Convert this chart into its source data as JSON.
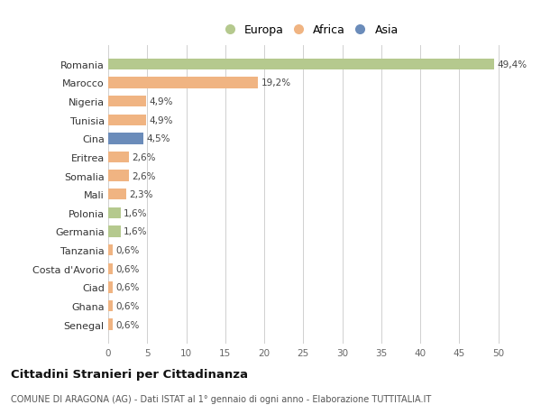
{
  "categories": [
    "Romania",
    "Marocco",
    "Nigeria",
    "Tunisia",
    "Cina",
    "Eritrea",
    "Somalia",
    "Mali",
    "Polonia",
    "Germania",
    "Tanzania",
    "Costa d'Avorio",
    "Ciad",
    "Ghana",
    "Senegal"
  ],
  "values": [
    49.4,
    19.2,
    4.9,
    4.9,
    4.5,
    2.6,
    2.6,
    2.3,
    1.6,
    1.6,
    0.6,
    0.6,
    0.6,
    0.6,
    0.6
  ],
  "labels": [
    "49,4%",
    "19,2%",
    "4,9%",
    "4,9%",
    "4,5%",
    "2,6%",
    "2,6%",
    "2,3%",
    "1,6%",
    "1,6%",
    "0,6%",
    "0,6%",
    "0,6%",
    "0,6%",
    "0,6%"
  ],
  "bar_colors": [
    "#b5c98e",
    "#f0b482",
    "#f0b482",
    "#f0b482",
    "#6b8cba",
    "#f0b482",
    "#f0b482",
    "#f0b482",
    "#b5c98e",
    "#b5c98e",
    "#f0b482",
    "#f0b482",
    "#f0b482",
    "#f0b482",
    "#f0b482"
  ],
  "legend_labels": [
    "Europa",
    "Africa",
    "Asia"
  ],
  "legend_colors": [
    "#b5c98e",
    "#f0b482",
    "#6b8cba"
  ],
  "title": "Cittadini Stranieri per Cittadinanza",
  "subtitle": "COMUNE DI ARAGONA (AG) - Dati ISTAT al 1° gennaio di ogni anno - Elaborazione TUTTITALIA.IT",
  "xlim": [
    0,
    52
  ],
  "xticks": [
    0,
    5,
    10,
    15,
    20,
    25,
    30,
    35,
    40,
    45,
    50
  ],
  "background_color": "#ffffff",
  "grid_color": "#d0d0d0"
}
